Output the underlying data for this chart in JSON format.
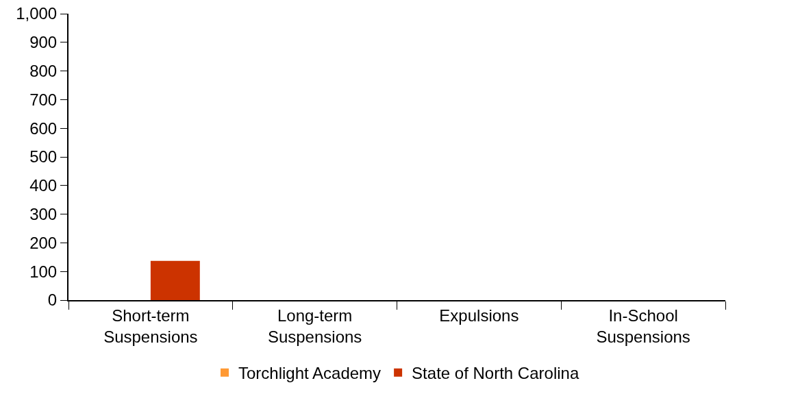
{
  "chart_data": {
    "type": "bar",
    "categories": [
      "Short-term Suspensions",
      "Long-term Suspensions",
      "Expulsions",
      "In-School Suspensions"
    ],
    "series": [
      {
        "name": "Torchlight Academy",
        "color": "#ff9933",
        "values": [
          0,
          0,
          0,
          0
        ]
      },
      {
        "name": "State of North Carolina",
        "color": "#cc3300",
        "values": [
          137,
          0,
          0,
          0
        ]
      }
    ],
    "ylim": [
      0,
      1000
    ],
    "yticks": [
      0,
      100,
      200,
      300,
      400,
      500,
      600,
      700,
      800,
      900,
      {
        "value": 1000,
        "label": "1,000"
      }
    ],
    "grid": false,
    "legend": "bottom"
  }
}
